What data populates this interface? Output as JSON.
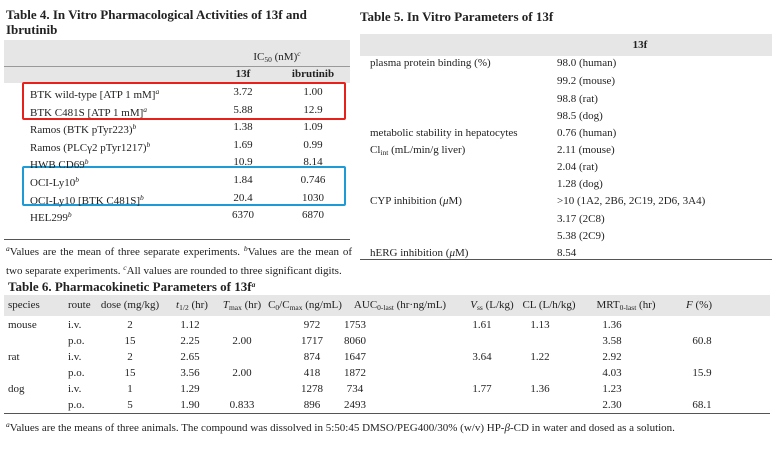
{
  "table4": {
    "title": "Table 4. In Vitro Pharmacological Activities of 13f and Ibrutinib",
    "group_header": [
      {
        "t": "IC"
      },
      {
        "sub": "50"
      },
      {
        "t": " (nM)"
      },
      {
        "sup": "c"
      }
    ],
    "columns": [
      "13f",
      "ibrutinib"
    ],
    "rows": [
      {
        "label": [
          {
            "t": "BTK wild-type [ATP 1 mM]"
          },
          {
            "sup": "a"
          }
        ],
        "values": [
          "3.72",
          "1.00"
        ]
      },
      {
        "label": [
          {
            "t": "BTK C481S [ATP 1 mM]"
          },
          {
            "sup": "a"
          }
        ],
        "values": [
          "5.88",
          "12.9"
        ]
      },
      {
        "label": [
          {
            "t": "Ramos (BTK pTyr223)"
          },
          {
            "sup": "b"
          }
        ],
        "values": [
          "1.38",
          "1.09"
        ]
      },
      {
        "label": [
          {
            "t": "Ramos (PLCγ2 pTyr1217)"
          },
          {
            "sup": "b"
          }
        ],
        "values": [
          "1.69",
          "0.99"
        ]
      },
      {
        "label": [
          {
            "t": "HWB CD69"
          },
          {
            "sup": "b"
          }
        ],
        "values": [
          "10.9",
          "8.14"
        ]
      },
      {
        "label": [
          {
            "t": "OCI-Ly10"
          },
          {
            "sup": "b"
          }
        ],
        "values": [
          "1.84",
          "0.746"
        ]
      },
      {
        "label": [
          {
            "t": "OCI-Ly10 [BTK C481S]"
          },
          {
            "sup": "b"
          }
        ],
        "values": [
          "20.4",
          "1030"
        ]
      },
      {
        "label": [
          {
            "t": "HEL299"
          },
          {
            "sup": "b"
          }
        ],
        "values": [
          "6370",
          "6870"
        ]
      }
    ],
    "footnote": [
      {
        "sup": "a"
      },
      {
        "t": "Values are the mean of three separate experiments. "
      },
      {
        "sup": "b"
      },
      {
        "t": "Values are the mean of two separate experiments. "
      },
      {
        "sup": "c"
      },
      {
        "t": "All values are rounded to three significant digits."
      }
    ]
  },
  "table5": {
    "title": "Table 5. In Vitro Parameters of 13f",
    "column": "13f",
    "rows": [
      {
        "label": [
          {
            "t": "plasma protein binding (%)"
          }
        ],
        "value": "98.0 (human)"
      },
      {
        "label": null,
        "value": "99.2 (mouse)"
      },
      {
        "label": null,
        "value": "98.8 (rat)"
      },
      {
        "label": null,
        "value": "98.5 (dog)"
      },
      {
        "label": [
          {
            "t": "metabolic stability in hepatocytes"
          }
        ],
        "value": "0.76 (human)"
      },
      {
        "label": [
          {
            "t": "Cl"
          },
          {
            "sub": "int"
          },
          {
            "t": " (mL/min/g liver)"
          }
        ],
        "value": "2.11 (mouse)"
      },
      {
        "label": null,
        "value": "2.04 (rat)"
      },
      {
        "label": null,
        "value": "1.28 (dog)"
      },
      {
        "label": [
          {
            "t": "CYP inhibition ("
          },
          {
            "i": "μ"
          },
          {
            "t": "M)"
          }
        ],
        "value": ">10 (1A2, 2B6, 2C19, 2D6, 3A4)"
      },
      {
        "label": null,
        "value": "3.17 (2C8)"
      },
      {
        "label": null,
        "value": "5.38 (2C9)"
      },
      {
        "label": [
          {
            "t": "hERG inhibition ("
          },
          {
            "i": "μ"
          },
          {
            "t": "M)"
          }
        ],
        "value": "8.54"
      }
    ]
  },
  "table6": {
    "title": [
      {
        "t": "Table 6. Pharmacokinetic Parameters of 13f"
      },
      {
        "sup": "a"
      }
    ],
    "columns": [
      [
        {
          "t": "species"
        }
      ],
      [
        {
          "t": "route"
        }
      ],
      [
        {
          "t": "dose (mg/kg)"
        }
      ],
      [
        {
          "i": "t"
        },
        {
          "sub": "1/2"
        },
        {
          "t": " (hr)"
        }
      ],
      [
        {
          "i": "T"
        },
        {
          "sub": "max"
        },
        {
          "t": " (hr)"
        }
      ],
      [
        {
          "t": "C"
        },
        {
          "sub": "0"
        },
        {
          "t": "/C"
        },
        {
          "sub": "max"
        },
        {
          "t": " (ng/mL)"
        }
      ],
      [
        {
          "t": "AUC"
        },
        {
          "sub": "0-last"
        },
        {
          "t": " (hr·ng/mL)"
        }
      ],
      [
        {
          "i": "V"
        },
        {
          "sub": "ss"
        },
        {
          "t": " (L/kg)"
        }
      ],
      [
        {
          "t": "CL (L/h/kg)"
        }
      ],
      [
        {
          "t": "MRT"
        },
        {
          "sub": "0-last"
        },
        {
          "t": " (hr)"
        }
      ],
      [
        {
          "i": "F"
        },
        {
          "t": " (%)"
        }
      ]
    ],
    "rows": [
      [
        "mouse",
        "i.v.",
        "2",
        "1.12",
        null,
        "972",
        "1753",
        "1.61",
        "1.13",
        "1.36",
        null
      ],
      [
        null,
        "p.o.",
        "15",
        "2.25",
        "2.00",
        "1717",
        "8060",
        null,
        null,
        "3.58",
        "60.8"
      ],
      [
        "rat",
        "i.v.",
        "2",
        "2.65",
        null,
        "874",
        "1647",
        "3.64",
        "1.22",
        "2.92",
        null
      ],
      [
        null,
        "p.o.",
        "15",
        "3.56",
        "2.00",
        "418",
        "1872",
        null,
        null,
        "4.03",
        "15.9"
      ],
      [
        "dog",
        "i.v.",
        "1",
        "1.29",
        null,
        "1278",
        "734",
        "1.77",
        "1.36",
        "1.23",
        null
      ],
      [
        null,
        "p.o.",
        "5",
        "1.90",
        "0.833",
        "896",
        "2493",
        null,
        null,
        "2.30",
        "68.1"
      ]
    ],
    "footnote": [
      {
        "sup": "a"
      },
      {
        "t": "Values are the means of three animals. The compound was dissolved in 5:50:45 DMSO/PEG400/30% (w/v) HP-"
      },
      {
        "i": "β"
      },
      {
        "t": "-CD in water and dosed as a solution."
      }
    ]
  }
}
